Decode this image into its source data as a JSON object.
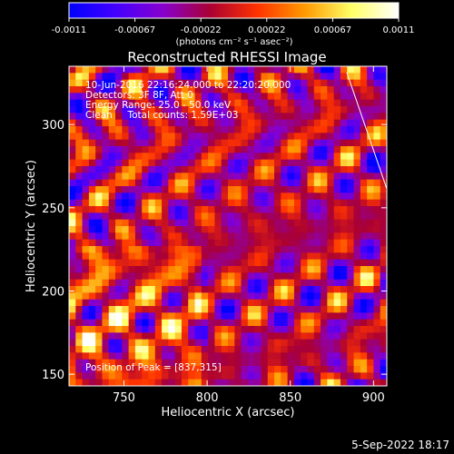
{
  "chart_data": {
    "type": "heatmap",
    "title": "Reconstructed RHESSI Image",
    "xlabel": "Heliocentric X (arcsec)",
    "ylabel": "Heliocentric Y (arcsec)",
    "xlim": [
      717,
      908
    ],
    "ylim": [
      143,
      335
    ],
    "xticks": [
      750,
      800,
      850,
      900
    ],
    "yticks": [
      150,
      200,
      250,
      300
    ],
    "colorbar": {
      "min": -0.0011,
      "max": 0.0011,
      "tick_labels": [
        "-0.0011",
        "-0.00067",
        "-0.00022",
        "0.00022",
        "0.00067",
        "0.0011"
      ],
      "unit_label": "(photons cm⁻² s⁻¹ asec⁻²)",
      "colormap": [
        "#0000ff",
        "#4400ff",
        "#8800cc",
        "#aa0033",
        "#ff3300",
        "#ff9900",
        "#ffff66",
        "#ffffff"
      ]
    },
    "annotations": [
      "10-Jun-2016 22:16:24.000 to 22:20:20.000",
      "Detectors: 3F 8F, Att 0",
      "Energy Range: 25.0 - 50.0 keV",
      "Clean     Total counts: 1.59E+03"
    ],
    "peak_label": "Position of Peak = [837,315]",
    "peak": [
      837,
      315
    ],
    "grid_cells": 48
  },
  "footer": {
    "date": "5-Sep-2022 18:17"
  }
}
